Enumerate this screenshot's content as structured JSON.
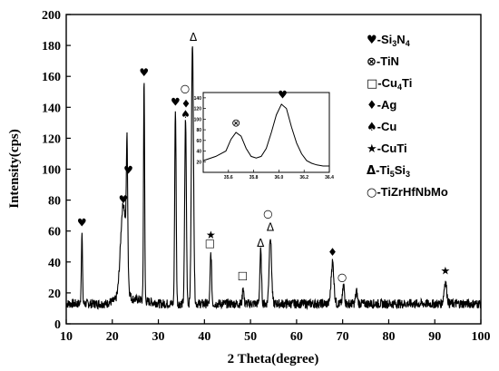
{
  "chart_data": {
    "type": "line",
    "title": "",
    "xlabel": "2 Theta(degree)",
    "ylabel": "Intensity(cps)",
    "xlim": [
      10,
      100
    ],
    "ylim": [
      0,
      200
    ],
    "x_ticks": [
      10,
      20,
      30,
      40,
      50,
      60,
      70,
      80,
      90,
      100
    ],
    "y_ticks": [
      0,
      20,
      40,
      60,
      80,
      100,
      120,
      140,
      160,
      180,
      200
    ],
    "series": [
      {
        "color": "#000000",
        "baseline": 13,
        "peaks": [
          {
            "x": 13.4,
            "y": 60,
            "w": 0.12
          },
          {
            "x": 22.4,
            "y": 75,
            "w": 0.6
          },
          {
            "x": 23.2,
            "y": 93,
            "w": 0.15
          },
          {
            "x": 26.9,
            "y": 158,
            "w": 0.12
          },
          {
            "x": 33.7,
            "y": 139,
            "w": 0.15
          },
          {
            "x": 35.9,
            "y": 133,
            "w": 0.18
          },
          {
            "x": 37.4,
            "y": 183,
            "w": 0.22
          },
          {
            "x": 41.4,
            "y": 46,
            "w": 0.15
          },
          {
            "x": 48.4,
            "y": 24,
            "w": 0.15
          },
          {
            "x": 52.2,
            "y": 47,
            "w": 0.18
          },
          {
            "x": 54.3,
            "y": 57,
            "w": 0.25
          },
          {
            "x": 67.8,
            "y": 40,
            "w": 0.3
          },
          {
            "x": 70.2,
            "y": 25,
            "w": 0.2
          },
          {
            "x": 73.0,
            "y": 21,
            "w": 0.2
          },
          {
            "x": 92.3,
            "y": 27,
            "w": 0.3
          }
        ]
      }
    ],
    "legend": [
      {
        "symbol": "♥",
        "label": "-Si",
        "sub": "3",
        "label2": "N",
        "sub2": "4"
      },
      {
        "symbol": "⊗",
        "label": "-TiN"
      },
      {
        "symbol": "□",
        "label": "-Cu",
        "sub": "4",
        "label2": "Ti"
      },
      {
        "symbol": "♦",
        "label": "-Ag"
      },
      {
        "symbol": "♠",
        "label": "-Cu"
      },
      {
        "symbol": "★",
        "label": "-CuTi"
      },
      {
        "symbol": "Δ",
        "label": "-Ti",
        "sub": "5",
        "label2": "Si",
        "sub2": "3"
      },
      {
        "symbol": "○",
        "label": "-TiZrHfNbMo"
      }
    ],
    "annotations": [
      {
        "symbol": "♥",
        "x": 13.4,
        "y": 63
      },
      {
        "symbol": "♥",
        "x": 22.4,
        "y": 78
      },
      {
        "symbol": "♥",
        "x": 23.5,
        "y": 97
      },
      {
        "symbol": "♥",
        "x": 26.9,
        "y": 160
      },
      {
        "symbol": "♥",
        "x": 33.7,
        "y": 141
      },
      {
        "symbol": "○",
        "x": 35.8,
        "y": 150
      },
      {
        "symbol": "♦",
        "x": 36.0,
        "y": 140
      },
      {
        "symbol": "♠",
        "x": 35.9,
        "y": 133
      },
      {
        "symbol": "Δ",
        "x": 37.6,
        "y": 183
      },
      {
        "symbol": "★",
        "x": 41.4,
        "y": 55
      },
      {
        "symbol": "□",
        "x": 41.2,
        "y": 50
      },
      {
        "symbol": "□",
        "x": 48.3,
        "y": 29
      },
      {
        "symbol": "Δ",
        "x": 52.2,
        "y": 50
      },
      {
        "symbol": "○",
        "x": 53.8,
        "y": 69
      },
      {
        "symbol": "Δ",
        "x": 54.3,
        "y": 60
      },
      {
        "symbol": "♦",
        "x": 67.8,
        "y": 44
      },
      {
        "symbol": "○",
        "x": 69.9,
        "y": 28
      },
      {
        "symbol": "★",
        "x": 92.3,
        "y": 32
      }
    ],
    "inset": {
      "type": "line",
      "xlim": [
        35.4,
        36.4
      ],
      "ylim": [
        0,
        150
      ],
      "x_ticks": [
        "35.6",
        "35.8",
        "36.0",
        "36.2",
        "36.4"
      ],
      "y_ticks": [
        "20",
        "40",
        "60",
        "80",
        "100",
        "120",
        "140"
      ],
      "x": [
        35.4,
        35.5,
        35.58,
        35.62,
        35.66,
        35.7,
        35.74,
        35.78,
        35.82,
        35.86,
        35.9,
        35.94,
        35.98,
        36.02,
        36.06,
        36.1,
        36.14,
        36.18,
        36.22,
        36.26,
        36.3,
        36.35,
        36.4
      ],
      "y": [
        22,
        30,
        40,
        62,
        75,
        68,
        45,
        30,
        27,
        30,
        45,
        75,
        108,
        128,
        120,
        85,
        55,
        35,
        22,
        17,
        14,
        12,
        12
      ],
      "annotations": [
        {
          "symbol": "⊗",
          "x": 35.66,
          "y": 86
        },
        {
          "symbol": "♥",
          "x": 36.03,
          "y": 139
        }
      ]
    }
  }
}
